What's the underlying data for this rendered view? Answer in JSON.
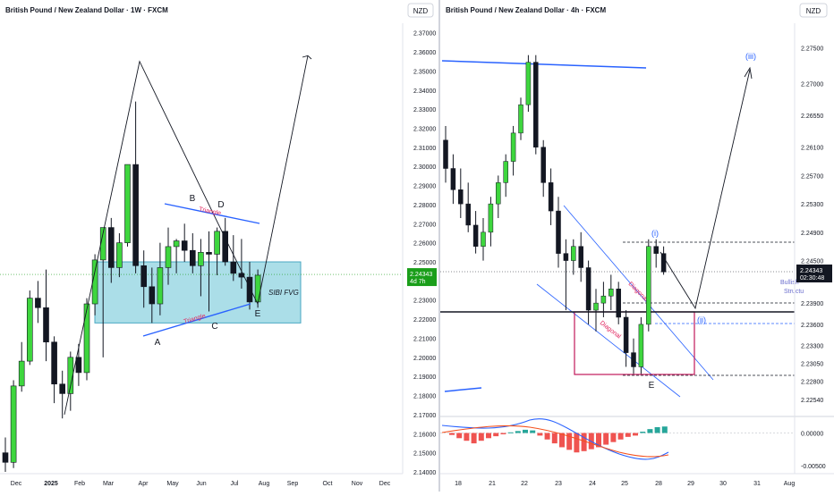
{
  "colors": {
    "bull": "#3ed63e",
    "bear": "#131722",
    "fvg_fill": "#8fd3e0",
    "fvg_stroke": "#4aa7c2",
    "trend_blue": "#2962ff",
    "pattern_red": "#e0245e",
    "price_label": "#1a9e1a",
    "diagonal_box": "#c2185b",
    "macd_line": "#2962ff",
    "signal_line": "#f4511e",
    "hist_up": "#26a69a",
    "hist_down": "#ef5350"
  },
  "left": {
    "title": "British Pound / New Zealand Dollar · 1W · FXCM",
    "currency": "NZD",
    "price_label": "2.24343",
    "countdown": "4d 7h",
    "fvg_label": "SIBI FVG",
    "pattern_label": "Triangle",
    "wave_labels": [
      "A",
      "B",
      "C",
      "D",
      "E"
    ],
    "xlabels": [
      "Dec",
      "2025",
      "Feb",
      "Mar",
      "Apr",
      "May",
      "Jun",
      "Jul",
      "Aug",
      "Sep",
      "Oct",
      "Nov",
      "Dec"
    ]
  },
  "right": {
    "title": "British Pound / New Zealand Dollar · 4h · FXCM",
    "currency": "NZD",
    "price_label": "2.24343",
    "countdown": "02:30:48",
    "struct_label_1": "Bullish",
    "struct_label_2": "Structu",
    "wave_i": "(i)",
    "wave_ii": "(ii)",
    "wave_iii": "(iii)",
    "wave_e": "E",
    "diagonal_label": "Diagonal",
    "xlabels": [
      "18",
      "21",
      "22",
      "23",
      "24",
      "25",
      "28",
      "29",
      "30",
      "31",
      "Aug"
    ]
  },
  "chart_data": [
    {
      "type": "candlestick",
      "title": "British Pound / New Zealand Dollar · 1W · FXCM",
      "ylim": [
        2.14,
        2.375
      ],
      "yticks": [
        2.37,
        2.36,
        2.35,
        2.34,
        2.33,
        2.32,
        2.31,
        2.3,
        2.29,
        2.28,
        2.27,
        2.26,
        2.25,
        2.23,
        2.22,
        2.21,
        2.2,
        2.19,
        2.18,
        2.17,
        2.16,
        2.15,
        2.14
      ],
      "current_price": 2.24343,
      "candles": [
        {
          "o": 2.15,
          "h": 2.158,
          "l": 2.14,
          "c": 2.145
        },
        {
          "o": 2.145,
          "h": 2.188,
          "l": 2.142,
          "c": 2.185
        },
        {
          "o": 2.185,
          "h": 2.208,
          "l": 2.182,
          "c": 2.198
        },
        {
          "o": 2.198,
          "h": 2.235,
          "l": 2.196,
          "c": 2.231
        },
        {
          "o": 2.231,
          "h": 2.24,
          "l": 2.218,
          "c": 2.226
        },
        {
          "o": 2.226,
          "h": 2.246,
          "l": 2.198,
          "c": 2.208
        },
        {
          "o": 2.208,
          "h": 2.211,
          "l": 2.176,
          "c": 2.186
        },
        {
          "o": 2.186,
          "h": 2.193,
          "l": 2.168,
          "c": 2.181
        },
        {
          "o": 2.181,
          "h": 2.203,
          "l": 2.172,
          "c": 2.2
        },
        {
          "o": 2.2,
          "h": 2.207,
          "l": 2.185,
          "c": 2.192
        },
        {
          "o": 2.192,
          "h": 2.231,
          "l": 2.188,
          "c": 2.228
        },
        {
          "o": 2.228,
          "h": 2.254,
          "l": 2.222,
          "c": 2.251
        },
        {
          "o": 2.251,
          "h": 2.268,
          "l": 2.2,
          "c": 2.268
        },
        {
          "o": 2.268,
          "h": 2.273,
          "l": 2.239,
          "c": 2.247
        },
        {
          "o": 2.247,
          "h": 2.265,
          "l": 2.242,
          "c": 2.26
        },
        {
          "o": 2.26,
          "h": 2.301,
          "l": 2.258,
          "c": 2.301
        },
        {
          "o": 2.301,
          "h": 2.334,
          "l": 2.244,
          "c": 2.248
        },
        {
          "o": 2.248,
          "h": 2.256,
          "l": 2.226,
          "c": 2.237
        },
        {
          "o": 2.237,
          "h": 2.247,
          "l": 2.218,
          "c": 2.228
        },
        {
          "o": 2.228,
          "h": 2.26,
          "l": 2.222,
          "c": 2.247
        },
        {
          "o": 2.247,
          "h": 2.268,
          "l": 2.238,
          "c": 2.258
        },
        {
          "o": 2.258,
          "h": 2.262,
          "l": 2.244,
          "c": 2.261
        },
        {
          "o": 2.261,
          "h": 2.27,
          "l": 2.25,
          "c": 2.256
        },
        {
          "o": 2.256,
          "h": 2.265,
          "l": 2.244,
          "c": 2.248
        },
        {
          "o": 2.248,
          "h": 2.262,
          "l": 2.232,
          "c": 2.255
        },
        {
          "o": 2.255,
          "h": 2.266,
          "l": 2.224,
          "c": 2.254
        },
        {
          "o": 2.254,
          "h": 2.268,
          "l": 2.243,
          "c": 2.266
        },
        {
          "o": 2.266,
          "h": 2.273,
          "l": 2.248,
          "c": 2.25
        },
        {
          "o": 2.25,
          "h": 2.264,
          "l": 2.24,
          "c": 2.244
        },
        {
          "o": 2.244,
          "h": 2.262,
          "l": 2.236,
          "c": 2.242
        },
        {
          "o": 2.242,
          "h": 2.25,
          "l": 2.225,
          "c": 2.229
        },
        {
          "o": 2.229,
          "h": 2.246,
          "l": 2.226,
          "c": 2.243
        }
      ],
      "fvg_zone": [
        2.218,
        2.25
      ],
      "wave_points": {
        "A": 2.219,
        "B": 2.279,
        "C": 2.227,
        "D": 2.27,
        "E": 2.231
      },
      "projection_target": 2.358
    },
    {
      "type": "candlestick",
      "title": "British Pound / New Zealand Dollar · 4h · FXCM",
      "ylim": [
        2.2235,
        2.2785
      ],
      "yticks": [
        2.275,
        2.27,
        2.2655,
        2.261,
        2.257,
        2.253,
        2.249,
        2.245,
        2.239,
        2.236,
        2.233,
        2.2305,
        2.228,
        2.2254
      ],
      "current_price": 2.24343,
      "candles": [
        {
          "o": 2.262,
          "h": 2.264,
          "l": 2.256,
          "c": 2.258
        },
        {
          "o": 2.258,
          "h": 2.26,
          "l": 2.253,
          "c": 2.255
        },
        {
          "o": 2.255,
          "h": 2.258,
          "l": 2.251,
          "c": 2.253
        },
        {
          "o": 2.253,
          "h": 2.256,
          "l": 2.249,
          "c": 2.25
        },
        {
          "o": 2.25,
          "h": 2.252,
          "l": 2.246,
          "c": 2.247
        },
        {
          "o": 2.247,
          "h": 2.251,
          "l": 2.245,
          "c": 2.249
        },
        {
          "o": 2.249,
          "h": 2.254,
          "l": 2.247,
          "c": 2.253
        },
        {
          "o": 2.253,
          "h": 2.257,
          "l": 2.251,
          "c": 2.256
        },
        {
          "o": 2.256,
          "h": 2.26,
          "l": 2.254,
          "c": 2.259
        },
        {
          "o": 2.259,
          "h": 2.264,
          "l": 2.257,
          "c": 2.263
        },
        {
          "o": 2.263,
          "h": 2.268,
          "l": 2.262,
          "c": 2.267
        },
        {
          "o": 2.267,
          "h": 2.274,
          "l": 2.266,
          "c": 2.273
        },
        {
          "o": 2.273,
          "h": 2.274,
          "l": 2.26,
          "c": 2.261
        },
        {
          "o": 2.261,
          "h": 2.262,
          "l": 2.254,
          "c": 2.256
        },
        {
          "o": 2.256,
          "h": 2.258,
          "l": 2.25,
          "c": 2.252
        },
        {
          "o": 2.252,
          "h": 2.254,
          "l": 2.244,
          "c": 2.246
        },
        {
          "o": 2.246,
          "h": 2.248,
          "l": 2.238,
          "c": 2.245
        },
        {
          "o": 2.245,
          "h": 2.248,
          "l": 2.243,
          "c": 2.247
        },
        {
          "o": 2.247,
          "h": 2.249,
          "l": 2.242,
          "c": 2.244
        },
        {
          "o": 2.244,
          "h": 2.245,
          "l": 2.236,
          "c": 2.238
        },
        {
          "o": 2.238,
          "h": 2.241,
          "l": 2.235,
          "c": 2.239
        },
        {
          "o": 2.239,
          "h": 2.242,
          "l": 2.237,
          "c": 2.24
        },
        {
          "o": 2.24,
          "h": 2.243,
          "l": 2.238,
          "c": 2.241
        },
        {
          "o": 2.241,
          "h": 2.242,
          "l": 2.236,
          "c": 2.237
        },
        {
          "o": 2.237,
          "h": 2.238,
          "l": 2.23,
          "c": 2.232
        },
        {
          "o": 2.232,
          "h": 2.234,
          "l": 2.229,
          "c": 2.23
        },
        {
          "o": 2.23,
          "h": 2.237,
          "l": 2.229,
          "c": 2.236
        },
        {
          "o": 2.236,
          "h": 2.248,
          "l": 2.235,
          "c": 2.247
        },
        {
          "o": 2.247,
          "h": 2.248,
          "l": 2.244,
          "c": 2.246
        },
        {
          "o": 2.246,
          "h": 2.247,
          "l": 2.243,
          "c": 2.2434
        }
      ],
      "levels": {
        "wave_i_high": 2.2468,
        "wave_ii_target": 2.238,
        "E_low": 2.23
      },
      "projection_target": 2.27,
      "macd": {
        "ylim": [
          -0.006,
          0.002
        ],
        "yticks": [
          0.0,
          -0.005
        ],
        "hist": [
          -0.0003,
          -0.0008,
          -0.0012,
          -0.0016,
          -0.0012,
          -0.0008,
          -0.0005,
          -0.0002,
          0.0001,
          0.0003,
          0.0005,
          0.0004,
          -0.0004,
          -0.001,
          -0.0016,
          -0.0022,
          -0.0026,
          -0.003,
          -0.0028,
          -0.0025,
          -0.0022,
          -0.0018,
          -0.0014,
          -0.001,
          -0.0006,
          -0.0004,
          0.0002,
          0.0006,
          0.0009,
          0.001
        ]
      }
    }
  ]
}
